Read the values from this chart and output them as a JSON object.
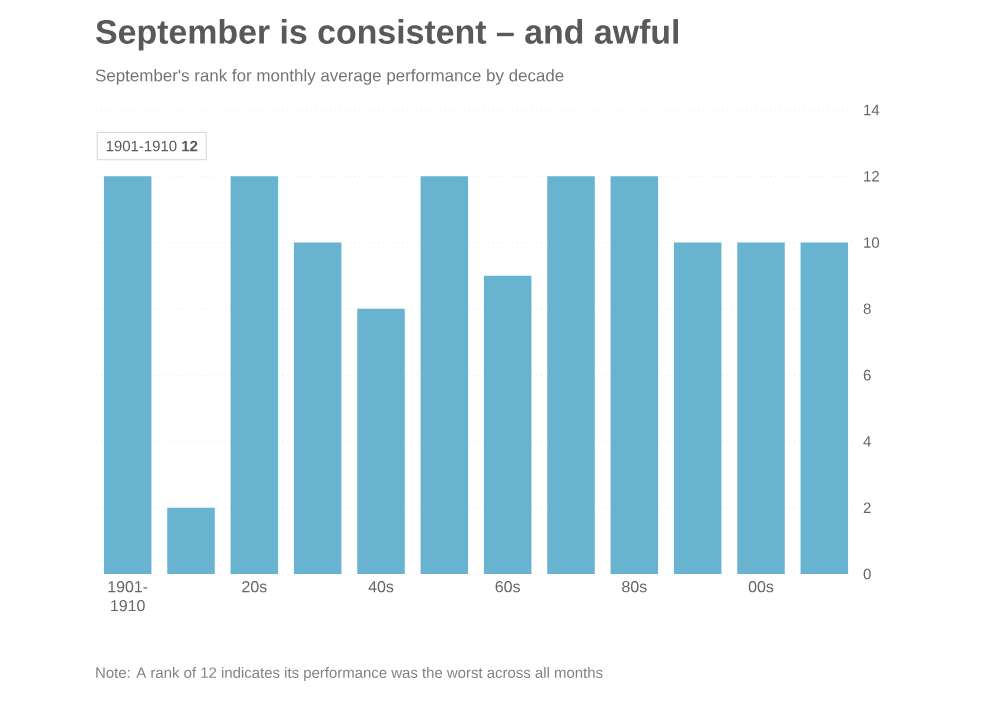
{
  "chart_data": {
    "type": "bar",
    "title": "September is consistent – and awful",
    "subtitle": "September's rank for monthly average performance by decade",
    "categories": [
      "1901-1910",
      null,
      "20s",
      null,
      "40s",
      null,
      "60s",
      null,
      "80s",
      null,
      "00s",
      null
    ],
    "values": [
      12,
      2,
      12,
      10,
      8,
      12,
      9,
      12,
      12,
      10,
      10,
      10
    ],
    "color": "#67b3d0",
    "ylim": [
      0,
      14
    ],
    "yticks": [
      0,
      2,
      4,
      6,
      8,
      10,
      12,
      14
    ],
    "grid": "y",
    "annotations": [
      "1901-1910 **12**",
      "Note: A rank of 12 indicates its performance was the worst across all months"
    ]
  }
}
